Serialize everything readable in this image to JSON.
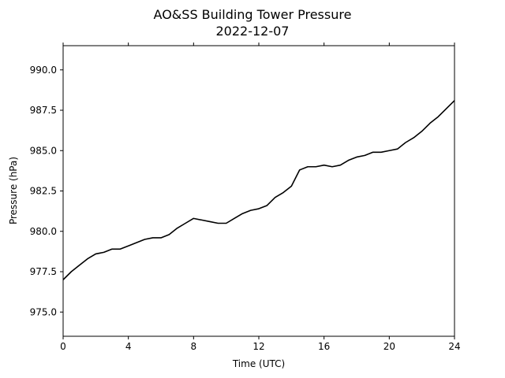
{
  "chart_data": {
    "type": "line",
    "title": "AO&SS Building Tower Pressure",
    "subtitle": "2022-12-07",
    "xlabel": "Time (UTC)",
    "ylabel": "Pressure (hPa)",
    "xlim": [
      0,
      24
    ],
    "ylim": [
      973.5,
      991.5
    ],
    "xticks": [
      0,
      4,
      8,
      12,
      16,
      20,
      24
    ],
    "xtick_labels": [
      "0",
      "4",
      "8",
      "12",
      "16",
      "20",
      "24"
    ],
    "yticks": [
      975.0,
      977.5,
      980.0,
      982.5,
      985.0,
      987.5,
      990.0
    ],
    "ytick_labels": [
      "975.0",
      "977.5",
      "980.0",
      "982.5",
      "985.0",
      "987.5",
      "990.0"
    ],
    "grid": false,
    "line_color": "#000000",
    "series": [
      {
        "x": [
          0,
          0.5,
          1,
          1.5,
          2,
          2.5,
          3,
          3.5,
          4,
          4.5,
          5,
          5.5,
          6,
          6.5,
          7,
          7.5,
          8,
          8.5,
          9,
          9.5,
          10,
          10.5,
          11,
          11.5,
          12,
          12.5,
          13,
          13.5,
          14,
          14.5,
          15,
          15.5,
          16,
          16.5,
          17,
          17.5,
          18,
          18.5,
          19,
          19.5,
          20,
          20.5,
          21,
          21.5,
          22,
          22.5,
          23,
          23.5,
          24
        ],
        "y": [
          977.0,
          977.5,
          977.9,
          978.3,
          978.6,
          978.7,
          978.9,
          978.9,
          979.1,
          979.3,
          979.5,
          979.6,
          979.6,
          979.8,
          980.2,
          980.5,
          980.8,
          980.7,
          980.6,
          980.5,
          980.5,
          980.8,
          981.1,
          981.3,
          981.4,
          981.6,
          982.1,
          982.4,
          982.8,
          983.8,
          984.0,
          984.0,
          984.1,
          984.0,
          984.1,
          984.4,
          984.6,
          984.7,
          984.9,
          984.9,
          985.0,
          985.1,
          985.5,
          985.8,
          986.2,
          986.7,
          987.1,
          987.6,
          988.1
        ]
      }
    ]
  }
}
